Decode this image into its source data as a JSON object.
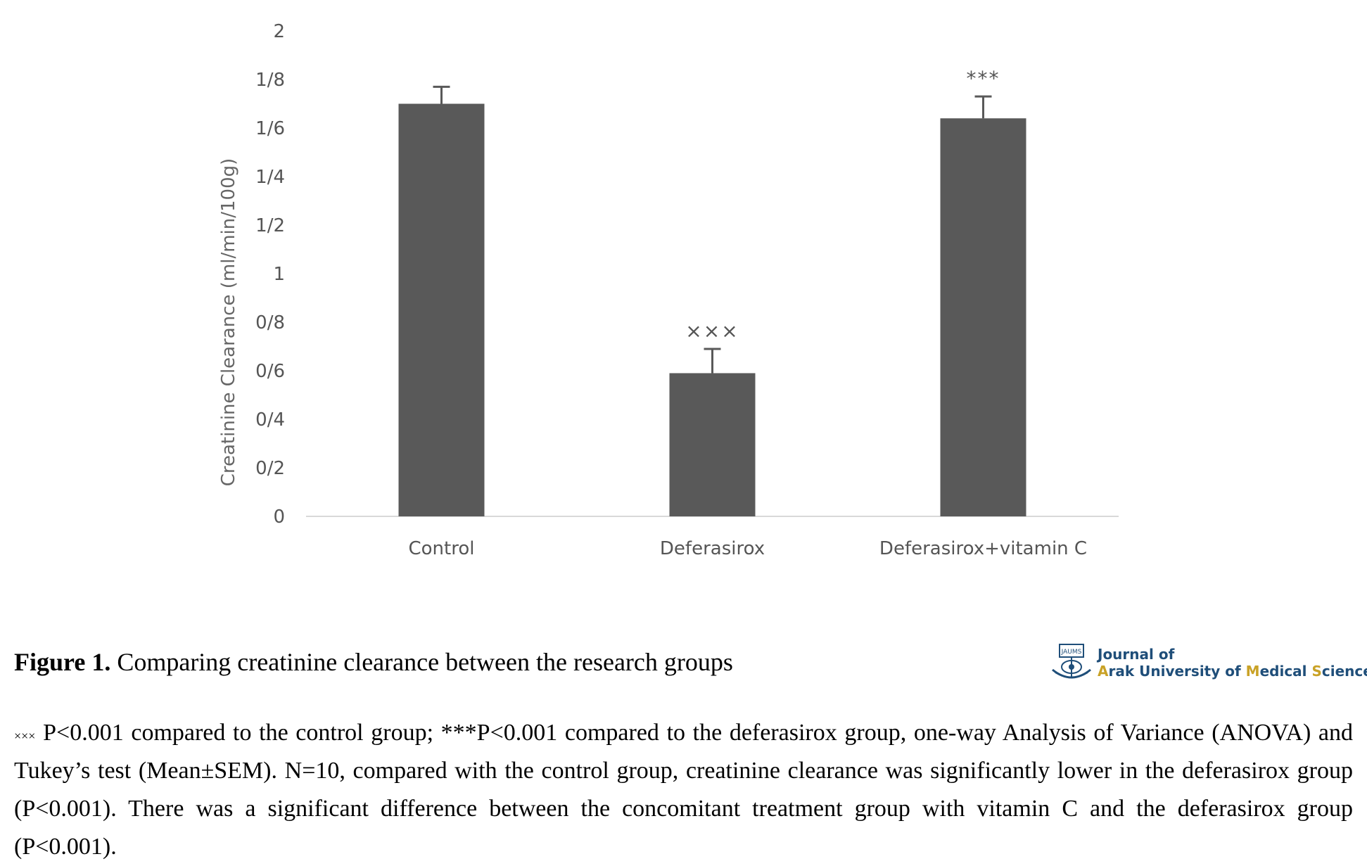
{
  "chart_data": {
    "type": "bar",
    "categories": [
      "Control",
      "Deferasirox",
      "Deferasirox+vitamin C"
    ],
    "values": [
      1.7,
      0.59,
      1.64
    ],
    "errors": [
      0.07,
      0.1,
      0.09
    ],
    "significance": [
      "",
      "×××",
      "***"
    ],
    "ylabel": "Creatinine Clearance (ml/min/100g)",
    "xlabel": "",
    "ylim": [
      0,
      2
    ],
    "yticks": [
      0,
      0.2,
      0.4,
      0.6,
      0.8,
      1,
      1.2,
      1.4,
      1.6,
      1.8,
      2
    ],
    "ytick_labels": [
      "0",
      "0/2",
      "0/4",
      "0/6",
      "0/8",
      "1",
      "1/2",
      "1/4",
      "1/6",
      "1/8",
      "2"
    ],
    "grid": false,
    "bar_color": "#595959",
    "axis_color": "#d9d9d9"
  },
  "caption": {
    "label": "Figure 1.",
    "text": "Comparing creatinine clearance between the research groups"
  },
  "notes": {
    "marker": "×××",
    "text": "P<0.001 compared to the control group; ***P<0.001 compared to the deferasirox group, one-way Analysis of Variance (ANOVA) and Tukey’s test (Mean±SEM). N=10, compared with the control group, creatinine clearance was significantly lower in the deferasirox group (P<0.001). There was a significant difference between the concomitant treatment group with vitamin C and the deferasirox group (P<0.001)."
  },
  "logo": {
    "emblem_text": "JAUMS",
    "line1": "Journal of",
    "line2": "Arak University of Medical Sciences",
    "primary_color": "#1f4e79",
    "accent_color": "#c9a227"
  }
}
